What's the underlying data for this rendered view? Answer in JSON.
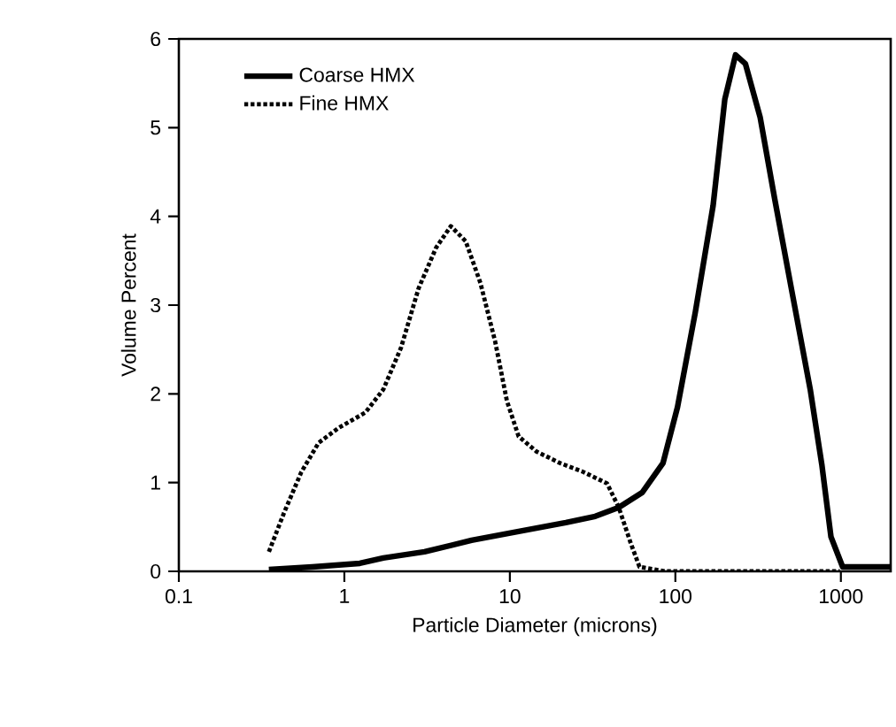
{
  "chart_data": {
    "type": "line",
    "xlabel": "Particle Diameter (microns)",
    "ylabel": "Volume Percent",
    "log": "x",
    "xlim": [
      0.1,
      2000
    ],
    "ylim": [
      0,
      6
    ],
    "xticks": [
      0.1,
      1,
      10,
      100,
      1000
    ],
    "yticks": [
      0,
      1,
      2,
      3,
      4,
      5,
      6
    ],
    "legend": "top left",
    "grid": false,
    "marker": "none",
    "series": [
      {
        "name": "Coarse HMX",
        "color": "#000000",
        "line_style": "solid",
        "x": [
          0.35,
          0.64,
          1.24,
          1.72,
          3.05,
          5.87,
          11.3,
          21.8,
          32.8,
          45.5,
          63.2,
          84.2,
          103,
          132,
          169,
          199,
          231,
          265,
          325,
          399,
          510,
          653,
          769,
          871,
          1025,
          2000
        ],
        "values": [
          0.02,
          0.05,
          0.09,
          0.15,
          0.22,
          0.35,
          0.45,
          0.55,
          0.62,
          0.72,
          0.89,
          1.22,
          1.85,
          2.92,
          4.12,
          5.32,
          5.82,
          5.72,
          5.12,
          4.19,
          3.12,
          2.05,
          1.19,
          0.39,
          0.05,
          0.05
        ]
      },
      {
        "name": "Fine HMX",
        "color": "#000000",
        "line_style": "dotted",
        "x": [
          0.35,
          0.43,
          0.55,
          0.7,
          0.93,
          1.34,
          1.72,
          2.2,
          2.81,
          3.59,
          4.4,
          5.41,
          6.64,
          8.15,
          9.6,
          11.3,
          14.5,
          20.1,
          27.8,
          38.7,
          45.5,
          53.7,
          60.7,
          87.7,
          985
        ],
        "values": [
          0.22,
          0.65,
          1.12,
          1.45,
          1.62,
          1.79,
          2.05,
          2.52,
          3.19,
          3.65,
          3.89,
          3.72,
          3.25,
          2.59,
          1.92,
          1.52,
          1.35,
          1.22,
          1.12,
          0.99,
          0.72,
          0.32,
          0.05,
          0,
          0
        ]
      }
    ]
  }
}
